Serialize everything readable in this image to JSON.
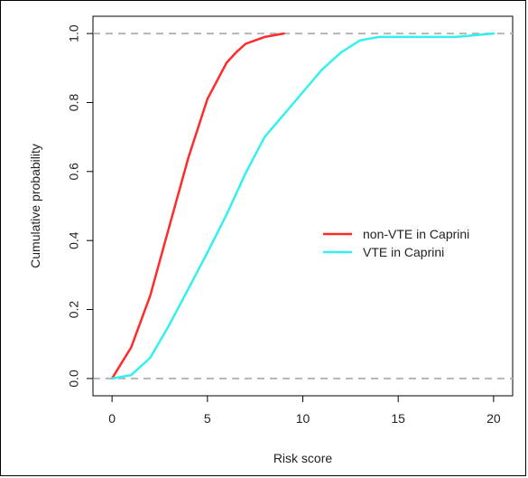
{
  "chart_data": {
    "type": "line",
    "title": "",
    "xlabel": "Risk score",
    "ylabel": "Cumulative probability",
    "xlim": [
      -1,
      21
    ],
    "ylim": [
      -0.05,
      1.05
    ],
    "xticks": [
      0,
      5,
      10,
      15,
      20
    ],
    "yticks": [
      0.0,
      0.2,
      0.4,
      0.6,
      0.8,
      1.0
    ],
    "xtick_labels": [
      "0",
      "5",
      "10",
      "15",
      "20"
    ],
    "ytick_labels": [
      "0.0",
      "0.2",
      "0.4",
      "0.6",
      "0.8",
      "1.0"
    ],
    "reference_lines": [
      0.0,
      1.0
    ],
    "legend_position": "center-right",
    "series": [
      {
        "name": "non-VTE in Caprini",
        "color": "#ff2a2a",
        "x": [
          0,
          1,
          2,
          3,
          4,
          5,
          6,
          6.5,
          7,
          8,
          9
        ],
        "y": [
          0.0,
          0.09,
          0.24,
          0.44,
          0.64,
          0.81,
          0.915,
          0.945,
          0.97,
          0.99,
          1.0
        ]
      },
      {
        "name": "VTE in Caprini",
        "color": "#33f0f0",
        "x": [
          0,
          1,
          2,
          3,
          4,
          5,
          6,
          7,
          8,
          9,
          10,
          11,
          12,
          13,
          14,
          15,
          16,
          17,
          18,
          19,
          20
        ],
        "y": [
          0.0,
          0.01,
          0.06,
          0.155,
          0.26,
          0.365,
          0.475,
          0.595,
          0.7,
          0.765,
          0.83,
          0.895,
          0.945,
          0.98,
          0.99,
          0.99,
          0.99,
          0.99,
          0.99,
          0.995,
          1.0
        ]
      }
    ]
  }
}
